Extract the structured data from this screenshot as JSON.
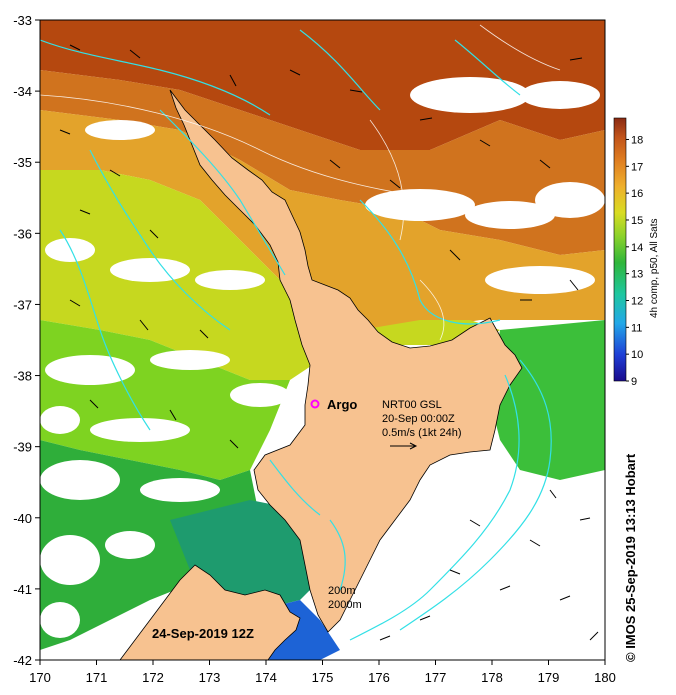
{
  "map": {
    "lon_ticks": [
      "170",
      "171",
      "172",
      "173",
      "174",
      "175",
      "176",
      "177",
      "178",
      "179",
      "180"
    ],
    "lat_ticks": [
      "-33",
      "-34",
      "-35",
      "-36",
      "-37",
      "-38",
      "-39",
      "-40",
      "-41",
      "-42"
    ],
    "lon_range": [
      170,
      180
    ],
    "lat_range": [
      -42,
      -33
    ],
    "sst_colors": {
      "very_warm": "#b5480f",
      "warm": "#d0731e",
      "mid_warm": "#e3a32b",
      "mild": "#c6d81f",
      "cool": "#7ed321",
      "cooler": "#2fae3a",
      "cold": "#1e9b6e",
      "coldest": "#1d63d6",
      "land": "#f7c290",
      "contour": "#33e0e6"
    }
  },
  "colorbar": {
    "title": "4h comp, p50, All Sats",
    "ticks": [
      "18",
      "17",
      "16",
      "15",
      "14",
      "13",
      "12",
      "11",
      "10",
      "9"
    ],
    "min": 9,
    "max": 18.8
  },
  "annotations": {
    "argo_label": "Argo",
    "vector_source": "NRT00 GSL",
    "vector_time": "20-Sep 00:00Z",
    "vector_scale": "0.5m/s (1kt 24h)",
    "isobath_1": "200m",
    "isobath_2": "2000m",
    "map_date": "24-Sep-2019 12Z",
    "credit": "© IMOS 25-Sep-2019 13:13 Hobart"
  }
}
